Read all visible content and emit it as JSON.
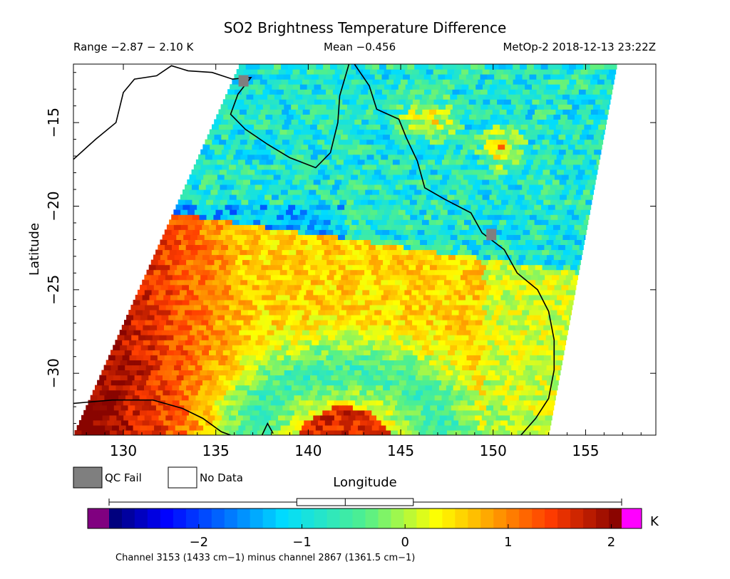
{
  "header": {
    "title": "SO2 Brightness Temperature Difference",
    "range": "Range −2.87 − 2.10 K",
    "mean": "Mean −0.456",
    "satellite_time": "MetOp-2 2018-12-13 23:22Z"
  },
  "legend": {
    "qc_fail": "QC Fail",
    "no_data": "No Data",
    "qc_fail_color": "#7f7f7f",
    "no_data_color": "#ffffff"
  },
  "colorbar": {
    "unit": "K",
    "ticks": [
      "−2",
      "−1",
      "0",
      "1",
      "2"
    ],
    "tick_values": [
      -2,
      -1,
      0,
      1,
      2
    ],
    "vmin": -2.87,
    "vmax": 2.1,
    "under_color": "#800080",
    "over_color": "#ff00ff",
    "box_stats": {
      "min": -2.87,
      "q1": -1.05,
      "median": -0.58,
      "q3": 0.08,
      "max": 2.1
    },
    "caption": "Channel 3153 (1433 cm−1) minus channel 2867 (1361.5 cm−1)"
  },
  "chart_data": {
    "type": "heatmap",
    "title": "SO2 Brightness Temperature Difference",
    "xlabel": "Longitude",
    "ylabel": "Latitude",
    "xlim": [
      127.3,
      158.8
    ],
    "ylim": [
      -33.7,
      -11.5
    ],
    "x_ticks": [
      "130",
      "135",
      "140",
      "145",
      "150",
      "155"
    ],
    "x_tick_values": [
      130,
      135,
      140,
      145,
      150,
      155
    ],
    "y_ticks": [
      "−15",
      "−20",
      "−25",
      "−30"
    ],
    "y_tick_values": [
      -15,
      -20,
      -25,
      -30
    ],
    "units": "K",
    "value_range": [
      -2.87,
      2.1
    ],
    "mean": -0.456,
    "swath": {
      "north_edge_lon": [
        136.3,
        156.7
      ],
      "north_edge_lat": -11.5,
      "south_edge_lon": [
        127.3,
        153.0
      ],
      "south_edge_lat": -33.7
    },
    "regions": [
      {
        "name": "northern band",
        "lat_range": [
          -20.5,
          -11.5
        ],
        "typical_value": -1.0
      },
      {
        "name": "warm southwest",
        "lat_range": [
          -31,
          -21
        ],
        "lon_range": [
          128,
          138
        ],
        "typical_value": 1.3
      },
      {
        "name": "central",
        "lat_range": [
          -30,
          -21.5
        ],
        "lon_range": [
          138,
          150
        ],
        "typical_value": 0.2
      },
      {
        "name": "southern arc",
        "lat_range": [
          -33.7,
          -31.5
        ],
        "lon_range": [
          140,
          145
        ],
        "typical_value": 1.6
      }
    ],
    "qc_fail_points": [
      {
        "lon": 136.5,
        "lat": -12.5
      },
      {
        "lon": 149.9,
        "lat": -21.7
      }
    ]
  }
}
